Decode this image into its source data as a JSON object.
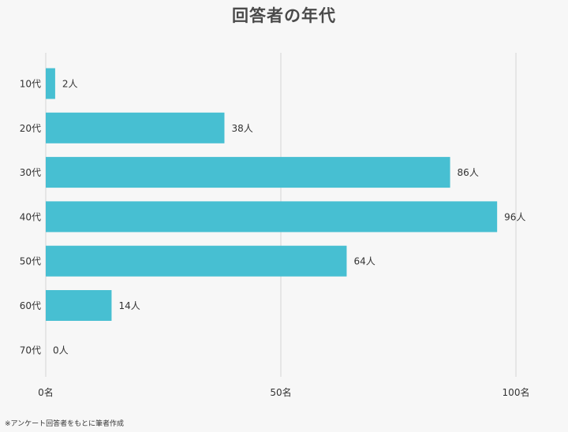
{
  "chart_data": {
    "type": "bar",
    "orientation": "horizontal",
    "title": "回答者の年代",
    "categories": [
      "10代",
      "20代",
      "30代",
      "40代",
      "50代",
      "60代",
      "70代"
    ],
    "values": [
      2,
      38,
      86,
      96,
      64,
      14,
      0
    ],
    "value_labels": [
      "2人",
      "38人",
      "86人",
      "96人",
      "64人",
      "14人",
      "0人"
    ],
    "xlim": [
      0,
      100
    ],
    "x_ticks": [
      0,
      50,
      100
    ],
    "x_tick_labels": [
      "0名",
      "50名",
      "100名"
    ],
    "xlabel": "",
    "ylabel": "",
    "grid": "vertical",
    "bar_color": "#47bfd2",
    "grid_color": "#d6d6d6"
  },
  "footnote": "※アンケート回答者をもとに筆者作成"
}
